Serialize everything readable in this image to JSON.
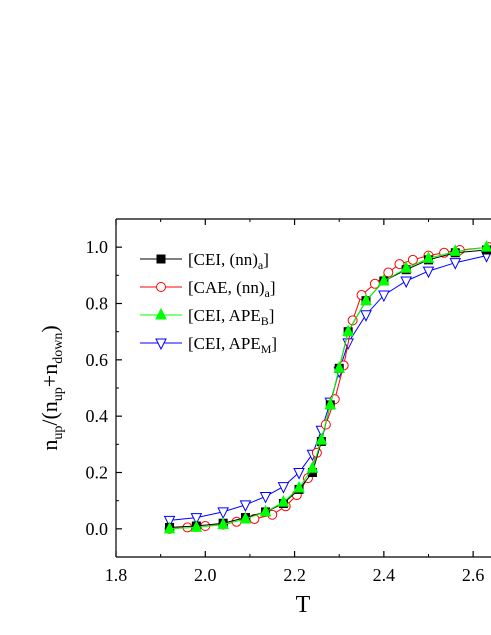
{
  "chart_data": {
    "type": "line",
    "title": "",
    "xlabel": "T",
    "ylabel": {
      "parts": [
        {
          "t": "n",
          "sub": false
        },
        {
          "t": "up",
          "sub": true
        },
        {
          "t": "/(n",
          "sub": false
        },
        {
          "t": "up",
          "sub": true
        },
        {
          "t": "+n",
          "sub": false
        },
        {
          "t": "down",
          "sub": true
        },
        {
          "t": ")",
          "sub": false
        }
      ]
    },
    "xlim": [
      1.8,
      2.64
    ],
    "ylim": [
      -0.1,
      1.1
    ],
    "xticks": [
      {
        "value": 1.8,
        "label": "1.8"
      },
      {
        "value": 2.0,
        "label": "2.0"
      },
      {
        "value": 2.2,
        "label": "2.2"
      },
      {
        "value": 2.4,
        "label": "2.4"
      },
      {
        "value": 2.6,
        "label": "2.6"
      }
    ],
    "yticks": [
      {
        "value": 0.0,
        "label": "0.0"
      },
      {
        "value": 0.2,
        "label": "0.2"
      },
      {
        "value": 0.4,
        "label": "0.4"
      },
      {
        "value": 0.6,
        "label": "0.6"
      },
      {
        "value": 0.8,
        "label": "0.8"
      },
      {
        "value": 1.0,
        "label": "1.0"
      }
    ],
    "grid": false,
    "legend_position": "top-left",
    "series": [
      {
        "name": {
          "main": "[CEI, (nn)",
          "sub": "a",
          "tail": "]"
        },
        "marker": "square-filled",
        "color": "#000000",
        "x": [
          1.92,
          1.98,
          2.04,
          2.09,
          2.135,
          2.175,
          2.21,
          2.24,
          2.26,
          2.28,
          2.3,
          2.32,
          2.36,
          2.4,
          2.45,
          2.5,
          2.56,
          2.63
        ],
        "y": [
          0.005,
          0.01,
          0.02,
          0.04,
          0.06,
          0.09,
          0.14,
          0.2,
          0.31,
          0.44,
          0.57,
          0.7,
          0.81,
          0.88,
          0.92,
          0.955,
          0.98,
          0.99
        ]
      },
      {
        "name": {
          "main": "[CAE, (nn)",
          "sub": "a",
          "tail": "]"
        },
        "marker": "circle-open",
        "color": "#ff0000",
        "x": [
          1.92,
          1.96,
          2.0,
          2.04,
          2.07,
          2.11,
          2.15,
          2.18,
          2.205,
          2.23,
          2.25,
          2.27,
          2.29,
          2.31,
          2.33,
          2.35,
          2.38,
          2.41,
          2.435,
          2.465,
          2.5,
          2.535,
          2.57,
          2.635
        ],
        "y": [
          0.0,
          0.005,
          0.01,
          0.015,
          0.025,
          0.035,
          0.05,
          0.08,
          0.12,
          0.18,
          0.27,
          0.37,
          0.46,
          0.58,
          0.74,
          0.83,
          0.87,
          0.91,
          0.94,
          0.955,
          0.97,
          0.98,
          0.99,
          1.0
        ]
      },
      {
        "name": {
          "main": "[CEI, APE",
          "sub": "B",
          "tail": "]"
        },
        "marker": "triangle-up-filled",
        "color": "#00ff00",
        "x": [
          1.92,
          1.98,
          2.04,
          2.09,
          2.135,
          2.175,
          2.21,
          2.24,
          2.26,
          2.28,
          2.3,
          2.32,
          2.36,
          2.4,
          2.45,
          2.5,
          2.56,
          2.63
        ],
        "y": [
          0.0,
          0.005,
          0.015,
          0.035,
          0.06,
          0.095,
          0.145,
          0.215,
          0.315,
          0.44,
          0.57,
          0.7,
          0.81,
          0.88,
          0.925,
          0.96,
          0.985,
          1.0
        ]
      },
      {
        "name": {
          "main": "[CEI, APE",
          "sub": "M",
          "tail": "]"
        },
        "marker": "triangle-down-open",
        "color": "#0000ff",
        "x": [
          1.92,
          1.98,
          2.04,
          2.09,
          2.135,
          2.175,
          2.21,
          2.24,
          2.26,
          2.28,
          2.3,
          2.32,
          2.36,
          2.4,
          2.45,
          2.5,
          2.56,
          2.63
        ],
        "y": [
          0.03,
          0.04,
          0.06,
          0.085,
          0.115,
          0.15,
          0.2,
          0.265,
          0.35,
          0.45,
          0.56,
          0.66,
          0.76,
          0.83,
          0.88,
          0.915,
          0.945,
          0.97
        ]
      }
    ]
  }
}
